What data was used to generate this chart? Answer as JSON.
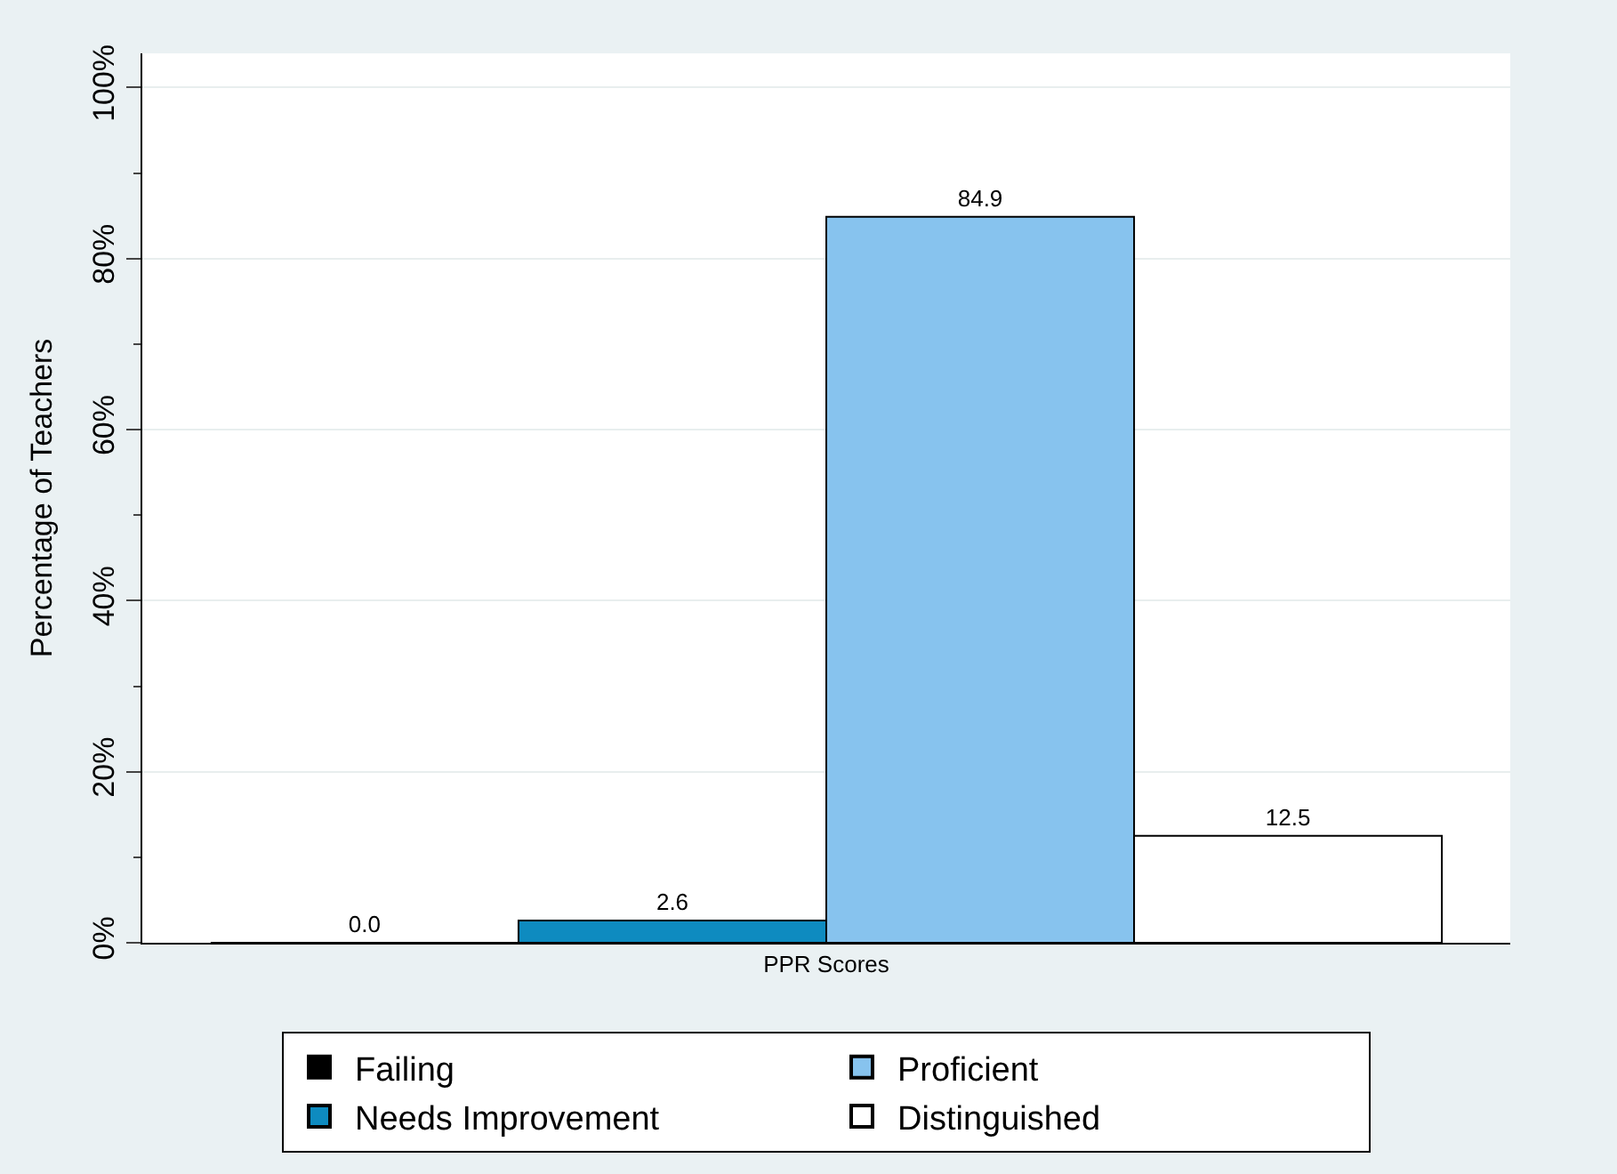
{
  "chart_data": {
    "type": "bar",
    "ylabel": "Percentage of Teachers",
    "categories": [
      "PPR Scores"
    ],
    "series": [
      {
        "name": "Failing",
        "color": "#000000",
        "values": [
          0
        ],
        "value_labels": [
          "0.0"
        ]
      },
      {
        "name": "Needs Improvement",
        "color": "#0e8bc0",
        "values": [
          2.6
        ],
        "value_labels": [
          "2.6"
        ]
      },
      {
        "name": "Proficient",
        "color": "#87c3ee",
        "values": [
          84.9
        ],
        "value_labels": [
          "84.9"
        ]
      },
      {
        "name": "Distinguished",
        "color": "#ffffff",
        "values": [
          12.5
        ],
        "value_labels": [
          "12.5"
        ]
      }
    ],
    "ylim": [
      0,
      104
    ],
    "yticks": [
      {
        "value": 0,
        "label": "0%"
      },
      {
        "value": 20,
        "label": "20%"
      },
      {
        "value": 40,
        "label": "40%"
      },
      {
        "value": 60,
        "label": "60%"
      },
      {
        "value": 80,
        "label": "80%"
      },
      {
        "value": 100,
        "label": "100%"
      }
    ],
    "grid": "y",
    "legend": "bottom"
  }
}
